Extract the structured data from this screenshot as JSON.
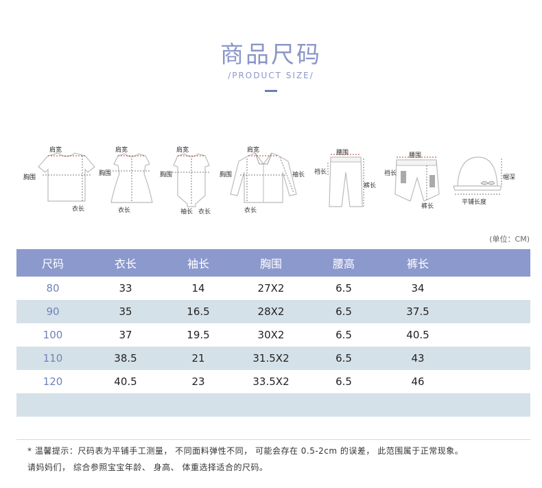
{
  "header": {
    "title": "商品尺码",
    "subtitle": "/PRODUCT SIZE/"
  },
  "diagrams": {
    "tshirt": {
      "shoulder": "肩宽",
      "chest": "胸围",
      "length": "衣长"
    },
    "dress": {
      "shoulder": "肩宽",
      "chest": "胸围",
      "length": "衣长"
    },
    "romper": {
      "shoulder": "肩宽",
      "chest": "胸围",
      "sleeve": "袖长",
      "length": "衣长"
    },
    "jacket": {
      "shoulder": "肩宽",
      "chest": "胸围",
      "sleeve": "袖长",
      "length": "衣长"
    },
    "pants": {
      "waist": "腰围",
      "hip": "裆长",
      "leg": "裤长"
    },
    "shorts": {
      "waist": "腰围",
      "hip": "裆长",
      "leg": "裤长"
    },
    "hat": {
      "width": "平铺长度",
      "depth": "帽深"
    }
  },
  "unit_note": "(单位：CM)",
  "table": {
    "headers": [
      "尺码",
      "衣长",
      "袖长",
      "胸围",
      "腰高",
      "裤长"
    ],
    "rows": [
      [
        "80",
        "33",
        "14",
        "27X2",
        "6.5",
        "34"
      ],
      [
        "90",
        "35",
        "16.5",
        "28X2",
        "6.5",
        "37.5"
      ],
      [
        "100",
        "37",
        "19.5",
        "30X2",
        "6.5",
        "40.5"
      ],
      [
        "110",
        "38.5",
        "21",
        "31.5X2",
        "6.5",
        "43"
      ],
      [
        "120",
        "40.5",
        "23",
        "33.5X2",
        "6.5",
        "46"
      ]
    ]
  },
  "notes": {
    "line1": "* 温馨提示：尺码表为平铺手工测量， 不同面料弹性不同， 可能会存在 0.5-2cm 的误差， 此范围属于正常现象。",
    "line2": "请妈妈们， 综合参照宝宝年龄、 身高、 体重选择适合的尺码。"
  },
  "colors": {
    "accent": "#8a96c8",
    "header_row": "#8c99cd",
    "stripe": "#d5e1e8",
    "size_text": "#6f81b8"
  }
}
